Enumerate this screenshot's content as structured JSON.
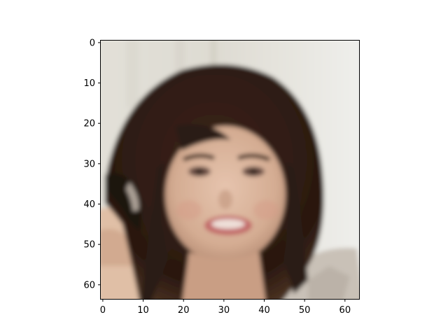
{
  "figure": {
    "background_color": "#ffffff",
    "image_description_label": "pixelated portrait photo of a woman with long dark brown hair, smiling, light background",
    "x_axis": {
      "range": [
        -0.5,
        63.5
      ],
      "ticks": [
        0,
        10,
        20,
        30,
        40,
        50,
        60
      ],
      "tick_labels": [
        "0",
        "10",
        "20",
        "30",
        "40",
        "50",
        "60"
      ]
    },
    "y_axis": {
      "range": [
        -0.5,
        63.5
      ],
      "inverted": true,
      "ticks": [
        0,
        10,
        20,
        30,
        40,
        50,
        60
      ],
      "tick_labels": [
        "0",
        "10",
        "20",
        "30",
        "40",
        "50",
        "60"
      ]
    },
    "colors": {
      "background_left": "#e4e2dc",
      "background_right": "#ededeb",
      "hair_dark": "#2a1a14",
      "hair_mid": "#4a3020",
      "skin": "#d8b49c",
      "skin_shadow": "#b88a70",
      "lips": "#c46a6a",
      "teeth": "#f0e4de",
      "eye_dark": "#3a2a24",
      "sweater": "#c8c0b8",
      "axis": "#000000"
    }
  }
}
